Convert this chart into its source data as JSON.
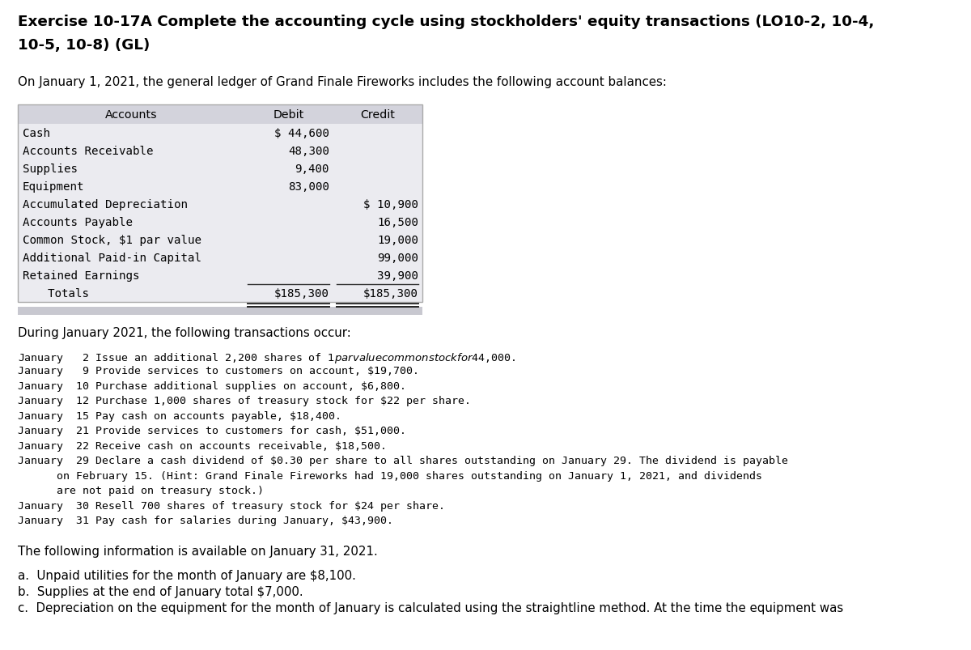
{
  "title_line1": "Exercise 10-17A Complete the accounting cycle using stockholders' equity transactions (LO10-2, 10-4,",
  "title_line2": "10-5, 10-8) (GL)",
  "intro_text": "On January 1, 2021, the general ledger of Grand Finale Fireworks includes the following account balances:",
  "table_header": [
    "Accounts",
    "Debit",
    "Credit"
  ],
  "table_rows": [
    [
      "Cash",
      "$ 44,600",
      ""
    ],
    [
      "Accounts Receivable",
      "48,300",
      ""
    ],
    [
      "Supplies",
      "9,400",
      ""
    ],
    [
      "Equipment",
      "83,000",
      ""
    ],
    [
      "Accumulated Depreciation",
      "",
      "$ 10,900"
    ],
    [
      "Accounts Payable",
      "",
      "16,500"
    ],
    [
      "Common Stock, $1 par value",
      "",
      "19,000"
    ],
    [
      "Additional Paid-in Capital",
      "",
      "99,000"
    ],
    [
      "Retained Earnings",
      "",
      "39,900"
    ]
  ],
  "totals_row": [
    "  Totals",
    "$185,300",
    "$185,300"
  ],
  "during_text": "During January 2021, the following transactions occur:",
  "transactions": [
    [
      "January",
      " 2",
      "Issue an additional 2,200 shares of $1 par value common stock for $44,000."
    ],
    [
      "January",
      " 9",
      "Provide services to customers on account, $19,700."
    ],
    [
      "January",
      "10",
      "Purchase additional supplies on account, $6,800."
    ],
    [
      "January",
      "12",
      "Purchase 1,000 shares of treasury stock for $22 per share."
    ],
    [
      "January",
      "15",
      "Pay cash on accounts payable, $18,400."
    ],
    [
      "January",
      "21",
      "Provide services to customers for cash, $51,000."
    ],
    [
      "January",
      "22",
      "Receive cash on accounts receivable, $18,500."
    ],
    [
      "January",
      "29",
      "Declare a cash dividend of $0.30 per share to all shares outstanding on January 29. The dividend is payable"
    ],
    [
      "",
      "",
      "      on February 15. (Hint: Grand Finale Fireworks had 19,000 shares outstanding on January 1, 2021, and dividends"
    ],
    [
      "",
      "",
      "      are not paid on treasury stock.)"
    ],
    [
      "January",
      "30",
      "Resell 700 shares of treasury stock for $24 per share."
    ],
    [
      "January",
      "31",
      "Pay cash for salaries during January, $43,900."
    ]
  ],
  "following_info_text": "The following information is available on January 31, 2021.",
  "info_items": [
    "a.  Unpaid utilities for the month of January are $8,100.",
    "b.  Supplies at the end of January total $7,000.",
    "c.  Depreciation on the equipment for the month of January is calculated using the straightline method. At the time the equipment was"
  ],
  "bg_color": "#ffffff",
  "table_header_bg": "#d3d3dc",
  "table_row_bg": "#ebebf0",
  "table_footer_bg": "#c8c8d0",
  "table_border_color": "#aaaaaa"
}
